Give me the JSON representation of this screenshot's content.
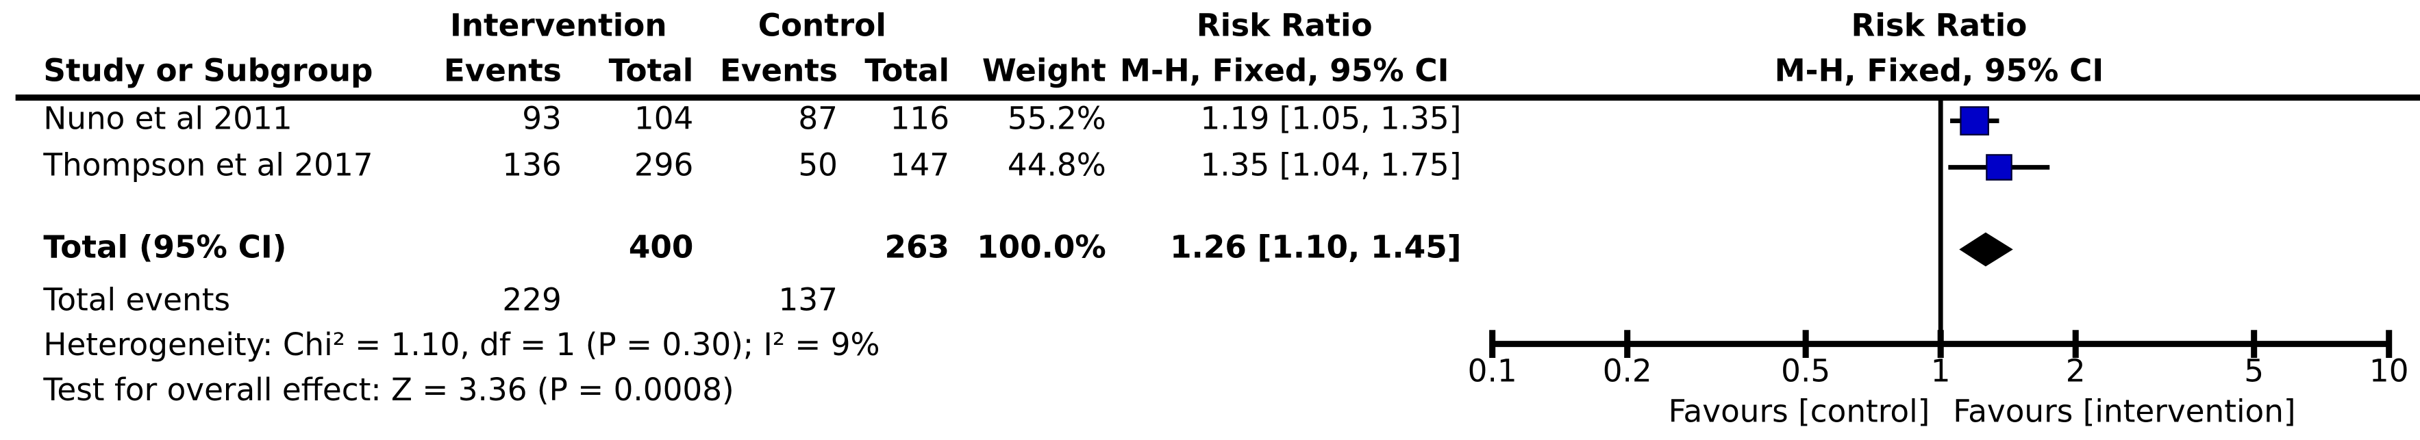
{
  "chart_data": {
    "type": "forest",
    "headers": {
      "group1": "Intervention",
      "group2": "Control",
      "study": "Study or Subgroup",
      "events1": "Events",
      "total1": "Total",
      "events2": "Events",
      "total2": "Total",
      "weight": "Weight",
      "rr_title": "Risk Ratio",
      "rr_method": "M-H, Fixed, 95% CI",
      "plot_title": "Risk Ratio",
      "plot_method": "M-H, Fixed, 95% CI"
    },
    "studies": [
      {
        "name": "Nuno et al 2011",
        "events1": 93,
        "total1": 104,
        "events2": 87,
        "total2": 116,
        "weight": 55.2,
        "weight_label": "55.2%",
        "rr": 1.19,
        "ci": [
          1.05,
          1.35
        ],
        "rr_label": "1.19 [1.05, 1.35]"
      },
      {
        "name": "Thompson et al 2017",
        "events1": 136,
        "total1": 296,
        "events2": 50,
        "total2": 147,
        "weight": 44.8,
        "weight_label": "44.8%",
        "rr": 1.35,
        "ci": [
          1.04,
          1.75
        ],
        "rr_label": "1.35 [1.04, 1.75]"
      }
    ],
    "total": {
      "name": "Total (95% CI)",
      "total1": 400,
      "total2": 263,
      "weight": 100,
      "weight_label": "100.0%",
      "rr": 1.26,
      "ci": [
        1.1,
        1.45
      ],
      "rr_label": "1.26 [1.10, 1.45]"
    },
    "total_events": {
      "label": "Total events",
      "events1": 229,
      "events2": 137
    },
    "heterogeneity": "Heterogeneity: Chi² = 1.10, df = 1 (P = 0.30); I² = 9%",
    "overall_effect": "Test for overall effect: Z = 3.36 (P = 0.0008)",
    "xlim": [
      0.1,
      10
    ],
    "xticks": [
      0.1,
      0.2,
      0.5,
      1,
      2,
      5,
      10
    ],
    "log_x": true,
    "xlabel_left": "Favours [control]",
    "xlabel_right": "Favours [intervention]",
    "color": "#0000c8"
  }
}
